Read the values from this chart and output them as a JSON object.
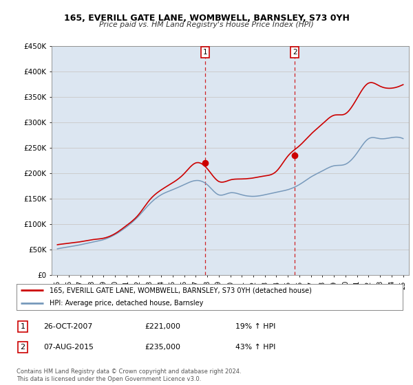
{
  "title": "165, EVERILL GATE LANE, WOMBWELL, BARNSLEY, S73 0YH",
  "subtitle": "Price paid vs. HM Land Registry's House Price Index (HPI)",
  "ylabel_ticks": [
    "£0",
    "£50K",
    "£100K",
    "£150K",
    "£200K",
    "£250K",
    "£300K",
    "£350K",
    "£400K",
    "£450K"
  ],
  "ylabel_values": [
    0,
    50000,
    100000,
    150000,
    200000,
    250000,
    300000,
    350000,
    400000,
    450000
  ],
  "ylim": [
    0,
    450000
  ],
  "xlim_start": 1994.5,
  "xlim_end": 2025.5,
  "grid_color": "#cccccc",
  "background_color": "#dce6f1",
  "red_line_color": "#cc0000",
  "blue_line_color": "#7799bb",
  "marker1_x": 2007.82,
  "marker1_y": 221000,
  "marker2_x": 2015.6,
  "marker2_y": 235000,
  "vline1_x": 2007.82,
  "vline2_x": 2015.6,
  "vline_color": "#cc0000",
  "legend_label_red": "165, EVERILL GATE LANE, WOMBWELL, BARNSLEY, S73 0YH (detached house)",
  "legend_label_blue": "HPI: Average price, detached house, Barnsley",
  "table_row1": [
    "1",
    "26-OCT-2007",
    "£221,000",
    "19% ↑ HPI"
  ],
  "table_row2": [
    "2",
    "07-AUG-2015",
    "£235,000",
    "43% ↑ HPI"
  ],
  "footer": "Contains HM Land Registry data © Crown copyright and database right 2024.\nThis data is licensed under the Open Government Licence v3.0.",
  "xtick_years": [
    1995,
    1996,
    1997,
    1998,
    1999,
    2000,
    2001,
    2002,
    2003,
    2004,
    2005,
    2006,
    2007,
    2008,
    2009,
    2010,
    2011,
    2012,
    2013,
    2014,
    2015,
    2016,
    2017,
    2018,
    2019,
    2020,
    2021,
    2022,
    2023,
    2024,
    2025
  ]
}
